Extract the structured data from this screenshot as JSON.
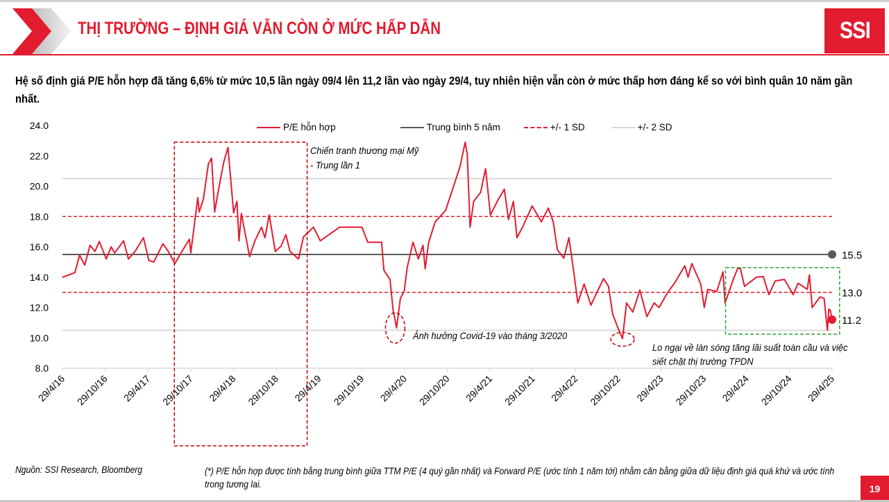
{
  "header": {
    "title": "THỊ TRƯỜNG – ĐỊNH GIÁ VẪN CÒN Ở MỨC HẤP DẪN",
    "logo_text": "SSI",
    "brand_color": "#e31b2f"
  },
  "subtitle": "Hệ số định giá P/E hỗn hợp đã tăng 6,6% từ mức 10,5 lần ngày 09/4 lên 11,2 lần vào ngày 29/4, tuy nhiên hiện vẫn còn ở mức thấp hơn đáng kể so với bình quân 10 năm gần nhất.",
  "footer": {
    "source": "Nguồn: SSI Research, Bloomberg",
    "note": "(*) P/E hỗn hợp được tính bằng trung bình giữa TTM P/E (4 quý gần nhất) và Forward P/E (ước tính 1 năm tới) nhằm cân bằng giữa dữ liệu định giá quá khứ và ước tính trong tương lai.",
    "page_number": "19"
  },
  "chart_data": {
    "type": "line",
    "title": "",
    "xlabel": "",
    "ylabel": "",
    "ylim": [
      8.0,
      24.0
    ],
    "yticks": [
      "8.0",
      "10.0",
      "12.0",
      "14.0",
      "16.0",
      "18.0",
      "20.0",
      "22.0",
      "24.0"
    ],
    "xlim": [
      "2016-04-29",
      "2025-04-29"
    ],
    "xticks": [
      "29/4/16",
      "29/10/16",
      "29/4/17",
      "29/10/17",
      "29/4/18",
      "29/10/18",
      "29/4/19",
      "29/10/19",
      "29/4/20",
      "29/10/20",
      "29/4/21",
      "29/10/21",
      "29/4/22",
      "29/10/22",
      "29/4/23",
      "29/10/23",
      "29/4/24",
      "29/10/24",
      "29/4/25"
    ],
    "grid": "none",
    "legend_position": "top",
    "legend": [
      {
        "label": "P/E hỗn hợp",
        "color": "#e31b2f",
        "style": "solid"
      },
      {
        "label": "Trung bình 5 năm",
        "color": "#595959",
        "style": "solid"
      },
      {
        "label": "+/- 1 SD",
        "color": "#e31b2f",
        "style": "dashed"
      },
      {
        "label": "+/- 2 SD",
        "color": "#d9d9d9",
        "style": "solid"
      }
    ],
    "reference_lines": {
      "mean": 15.5,
      "plus_1sd": 18.0,
      "minus_1sd": 13.0,
      "plus_2sd": 20.5,
      "minus_2sd": 10.5
    },
    "end_labels": {
      "mean": "15.5",
      "minus_1sd": "13.0",
      "last": "11.2"
    },
    "series": [
      {
        "name": "P/E hỗn hợp",
        "points": [
          [
            "2016-04-29",
            14.0
          ],
          [
            "2016-06-21",
            14.3
          ],
          [
            "2016-07-11",
            15.45
          ],
          [
            "2016-08-02",
            14.8
          ],
          [
            "2016-08-25",
            16.1
          ],
          [
            "2016-09-15",
            15.7
          ],
          [
            "2016-10-03",
            16.35
          ],
          [
            "2016-11-02",
            15.2
          ],
          [
            "2016-11-23",
            16.0
          ],
          [
            "2016-12-08",
            15.6
          ],
          [
            "2017-01-15",
            16.4
          ],
          [
            "2017-02-05",
            15.2
          ],
          [
            "2017-03-05",
            15.7
          ],
          [
            "2017-04-10",
            16.6
          ],
          [
            "2017-05-03",
            15.1
          ],
          [
            "2017-05-24",
            15.0
          ],
          [
            "2017-07-02",
            16.2
          ],
          [
            "2017-07-25",
            15.7
          ],
          [
            "2017-08-22",
            14.9
          ],
          [
            "2017-09-21",
            15.7
          ],
          [
            "2017-10-23",
            16.5
          ],
          [
            "2017-10-29",
            15.6
          ],
          [
            "2017-11-28",
            19.25
          ],
          [
            "2017-12-04",
            18.3
          ],
          [
            "2017-12-22",
            19.15
          ],
          [
            "2018-01-12",
            21.45
          ],
          [
            "2018-01-26",
            21.85
          ],
          [
            "2018-02-08",
            18.3
          ],
          [
            "2018-02-25",
            19.8
          ],
          [
            "2018-03-19",
            21.6
          ],
          [
            "2018-04-06",
            22.55
          ],
          [
            "2018-04-30",
            18.25
          ],
          [
            "2018-05-14",
            19.0
          ],
          [
            "2018-05-23",
            16.4
          ],
          [
            "2018-06-02",
            18.2
          ],
          [
            "2018-06-22",
            16.6
          ],
          [
            "2018-07-07",
            15.35
          ],
          [
            "2018-07-30",
            16.4
          ],
          [
            "2018-08-27",
            17.3
          ],
          [
            "2018-09-11",
            16.6
          ],
          [
            "2018-09-29",
            18.1
          ],
          [
            "2018-10-25",
            15.7
          ],
          [
            "2018-11-19",
            16.05
          ],
          [
            "2018-12-09",
            16.8
          ],
          [
            "2018-12-27",
            15.7
          ],
          [
            "2019-02-01",
            15.2
          ],
          [
            "2019-02-22",
            16.65
          ],
          [
            "2019-03-21",
            17.05
          ],
          [
            "2019-04-06",
            17.3
          ],
          [
            "2019-05-05",
            16.4
          ],
          [
            "2019-07-27",
            17.3
          ],
          [
            "2019-10-30",
            17.3
          ],
          [
            "2019-11-24",
            16.3
          ],
          [
            "2020-01-22",
            16.3
          ],
          [
            "2020-02-01",
            14.45
          ],
          [
            "2020-02-27",
            13.85
          ],
          [
            "2020-03-11",
            11.85
          ],
          [
            "2020-03-26",
            10.65
          ],
          [
            "2020-04-11",
            12.6
          ],
          [
            "2020-04-28",
            13.1
          ],
          [
            "2020-05-10",
            14.6
          ],
          [
            "2020-06-04",
            16.3
          ],
          [
            "2020-06-27",
            15.2
          ],
          [
            "2020-07-17",
            16.1
          ],
          [
            "2020-07-26",
            14.55
          ],
          [
            "2020-08-10",
            16.3
          ],
          [
            "2020-09-07",
            17.65
          ],
          [
            "2020-10-21",
            18.4
          ],
          [
            "2020-11-14",
            19.5
          ],
          [
            "2020-12-22",
            21.3
          ],
          [
            "2021-01-13",
            22.9
          ],
          [
            "2021-01-22",
            22.1
          ],
          [
            "2021-02-03",
            17.3
          ],
          [
            "2021-02-18",
            19.0
          ],
          [
            "2021-03-20",
            19.6
          ],
          [
            "2021-04-10",
            21.15
          ],
          [
            "2021-05-01",
            18.1
          ],
          [
            "2021-05-30",
            19.0
          ],
          [
            "2021-06-29",
            19.8
          ],
          [
            "2021-07-17",
            17.8
          ],
          [
            "2021-08-07",
            19.0
          ],
          [
            "2021-08-22",
            16.6
          ],
          [
            "2021-09-15",
            17.3
          ],
          [
            "2021-10-26",
            18.7
          ],
          [
            "2021-12-04",
            17.65
          ],
          [
            "2022-01-03",
            18.55
          ],
          [
            "2022-01-24",
            17.65
          ],
          [
            "2022-02-11",
            15.8
          ],
          [
            "2022-03-10",
            15.25
          ],
          [
            "2022-04-01",
            16.6
          ],
          [
            "2022-04-24",
            14.1
          ],
          [
            "2022-05-09",
            12.3
          ],
          [
            "2022-06-05",
            13.55
          ],
          [
            "2022-07-04",
            12.15
          ],
          [
            "2022-07-28",
            12.95
          ],
          [
            "2022-08-27",
            13.9
          ],
          [
            "2022-09-17",
            13.4
          ],
          [
            "2022-10-05",
            11.55
          ],
          [
            "2022-10-26",
            10.7
          ],
          [
            "2022-11-16",
            9.95
          ],
          [
            "2022-12-03",
            12.3
          ],
          [
            "2022-12-30",
            11.7
          ],
          [
            "2023-01-29",
            13.15
          ],
          [
            "2023-02-28",
            11.4
          ],
          [
            "2023-03-31",
            12.3
          ],
          [
            "2023-04-21",
            12.0
          ],
          [
            "2023-05-26",
            12.95
          ],
          [
            "2023-06-28",
            13.65
          ],
          [
            "2023-08-09",
            14.75
          ],
          [
            "2023-08-23",
            14.0
          ],
          [
            "2023-09-08",
            14.9
          ],
          [
            "2023-10-16",
            13.55
          ],
          [
            "2023-10-31",
            12.0
          ],
          [
            "2023-11-15",
            13.2
          ],
          [
            "2023-12-23",
            13.05
          ],
          [
            "2024-01-19",
            14.35
          ],
          [
            "2024-01-28",
            12.3
          ],
          [
            "2024-03-03",
            13.85
          ],
          [
            "2024-03-21",
            14.55
          ],
          [
            "2024-04-02",
            14.6
          ],
          [
            "2024-04-20",
            13.4
          ],
          [
            "2024-06-10",
            14.0
          ],
          [
            "2024-07-09",
            14.05
          ],
          [
            "2024-08-02",
            12.85
          ],
          [
            "2024-08-29",
            13.75
          ],
          [
            "2024-10-07",
            13.85
          ],
          [
            "2024-11-14",
            12.85
          ],
          [
            "2024-12-05",
            13.6
          ],
          [
            "2025-01-13",
            13.2
          ],
          [
            "2025-01-22",
            14.15
          ],
          [
            "2025-02-03",
            12.0
          ],
          [
            "2025-03-09",
            12.7
          ],
          [
            "2025-03-26",
            12.6
          ],
          [
            "2025-04-09",
            10.5
          ],
          [
            "2025-04-15",
            11.9
          ],
          [
            "2025-04-22",
            11.8
          ],
          [
            "2025-04-29",
            11.2
          ]
        ]
      }
    ],
    "annotations": [
      {
        "id": "trade-war",
        "text_lines": [
          "Chiến tranh thương mại Mỹ",
          "- Trung lần 1"
        ],
        "shape": "dashed-box",
        "color": "#c00000",
        "range": [
          "2017-08-20",
          "2019-03-10"
        ]
      },
      {
        "id": "covid",
        "text": "Ảnh hưởng Covid-19 vào tháng 3/2020",
        "shape": "dashed-ellipse",
        "color": "#c00000",
        "at": [
          "2020-03-26",
          10.65
        ]
      },
      {
        "id": "rates",
        "text_lines": [
          "Lo ngại về làn sóng tăng lãi suất toàn cầu và việc",
          "siết chặt thị trường TPDN"
        ],
        "shape": "dashed-ellipse",
        "color": "#c00000",
        "at": [
          "2022-11-16",
          9.95
        ]
      },
      {
        "id": "recent",
        "shape": "dashed-box",
        "color": "#2ca02c",
        "range": [
          "2024-01-30",
          "2025-05-31"
        ]
      }
    ]
  }
}
